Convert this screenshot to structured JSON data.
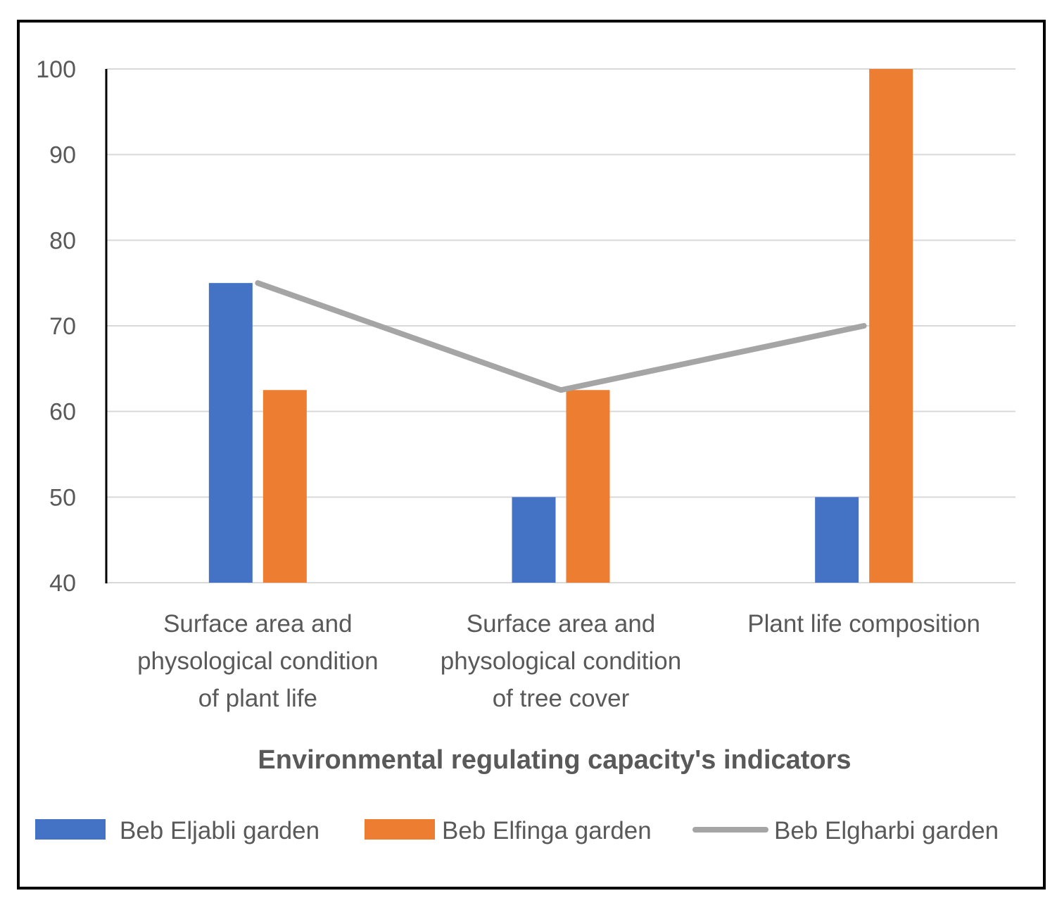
{
  "chart_data": {
    "type": "bar",
    "title": "",
    "xlabel": "Environmental regulating capacity's indicators",
    "ylabel": "",
    "ylim": [
      40,
      100
    ],
    "yticks": [
      40,
      50,
      60,
      70,
      80,
      90,
      100
    ],
    "grid": true,
    "legend_position": "bottom",
    "categories": [
      [
        "Surface area and",
        "physological condition",
        "of plant life"
      ],
      [
        "Surface area and",
        "physological condition",
        "of tree cover"
      ],
      [
        "Plant life composition"
      ]
    ],
    "series": [
      {
        "name": "Beb Eljabli garden",
        "kind": "bar",
        "color": "#4472C4",
        "values": [
          75,
          50,
          50
        ]
      },
      {
        "name": "Beb Elfinga garden",
        "kind": "bar",
        "color": "#ED7D31",
        "values": [
          62.5,
          62.5,
          100
        ]
      },
      {
        "name": "Beb Elgharbi garden",
        "kind": "line",
        "color": "#A5A5A5",
        "values": [
          75,
          62.5,
          70
        ]
      }
    ]
  }
}
